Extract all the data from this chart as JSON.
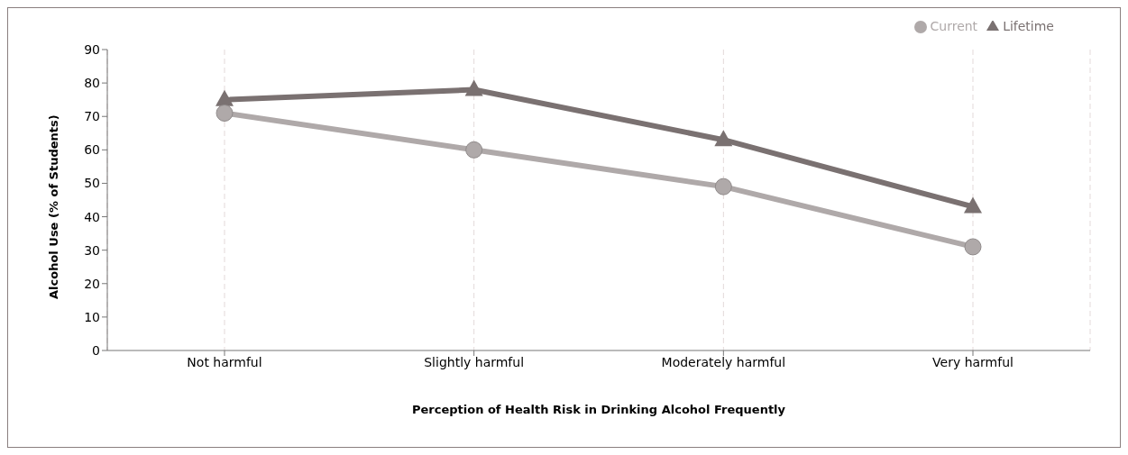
{
  "chart_data": {
    "type": "line",
    "xlabel": "Perception of Health Risk in Drinking Alcohol Frequently",
    "ylabel": "Alcohol Use (% of Students)",
    "categories": [
      "Not harmful",
      "Slightly harmful",
      "Moderately harmful",
      "Very harmful"
    ],
    "series": [
      {
        "name": "Lifetime",
        "color": "#7a7171",
        "marker": "triangle",
        "values": [
          75,
          78,
          63,
          43
        ]
      },
      {
        "name": "Current",
        "color": "#afa9a9",
        "marker": "circle",
        "values": [
          71,
          60,
          49,
          31
        ]
      }
    ],
    "ylim": [
      0,
      90
    ],
    "yticks": [
      0,
      10,
      20,
      30,
      40,
      50,
      60,
      70,
      80,
      90
    ],
    "grid": "x",
    "legend": "top right"
  }
}
